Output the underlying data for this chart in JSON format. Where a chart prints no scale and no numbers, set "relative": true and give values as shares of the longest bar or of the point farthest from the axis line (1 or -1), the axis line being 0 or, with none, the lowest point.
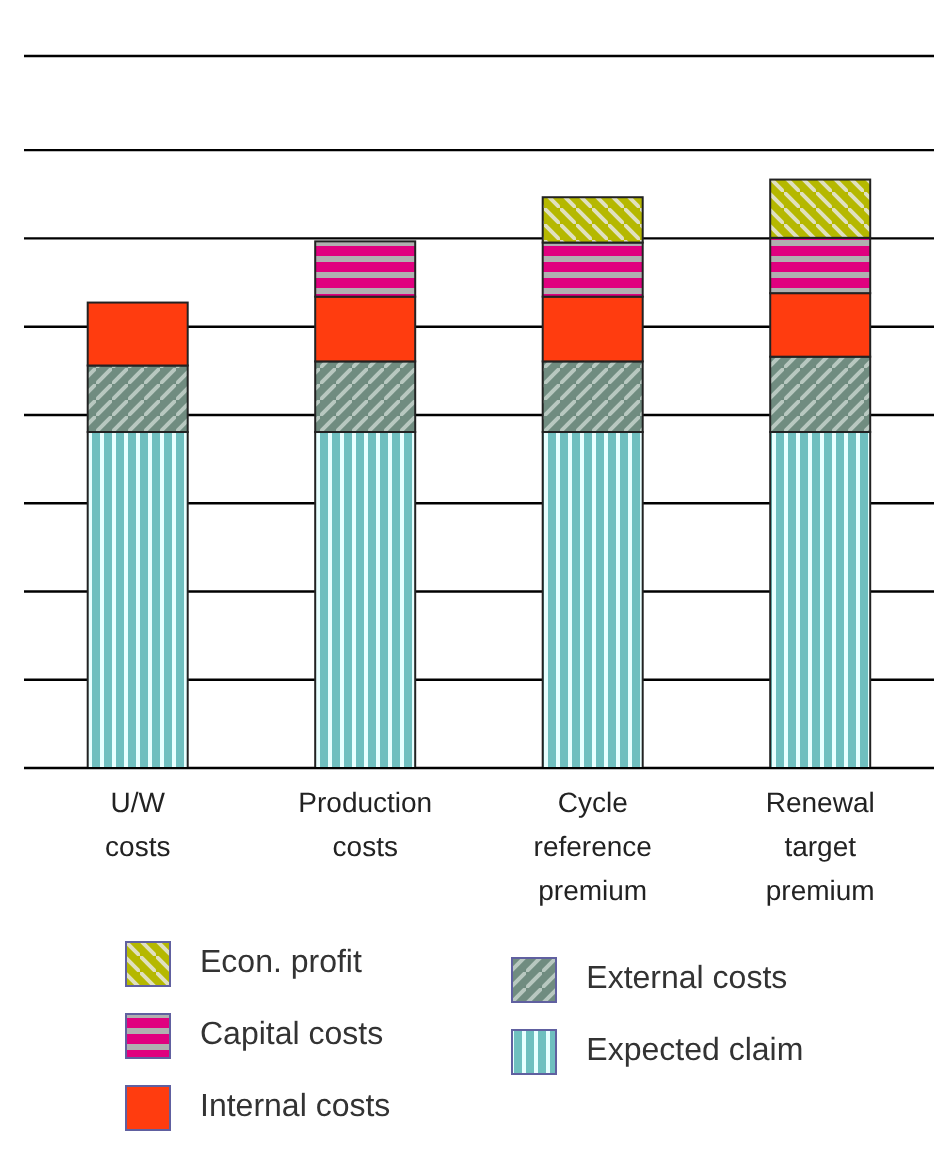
{
  "chart_data": {
    "type": "bar",
    "stacked": true,
    "relative": true,
    "grid": "y",
    "legend": "bottom",
    "categories": [
      "U/W costs",
      "Production costs",
      "Cycle reference premium",
      "Renewal target premium"
    ],
    "series": [
      {
        "name": "Expected claim",
        "color": "#6fbfbf",
        "values": [
          0.571,
          0.571,
          0.571,
          0.571
        ]
      },
      {
        "name": "External costs",
        "color": "#708c80",
        "values": [
          0.113,
          0.12,
          0.12,
          0.128
        ]
      },
      {
        "name": "Internal costs",
        "color": "#ff3c0f",
        "values": [
          0.107,
          0.11,
          0.11,
          0.108
        ]
      },
      {
        "name": "Capital costs",
        "color": "#e0007f",
        "values": [
          null,
          0.094,
          0.092,
          0.094
        ]
      },
      {
        "name": "Econ. profit",
        "color": "#b5b800",
        "values": [
          null,
          null,
          0.077,
          0.099
        ]
      }
    ]
  }
}
